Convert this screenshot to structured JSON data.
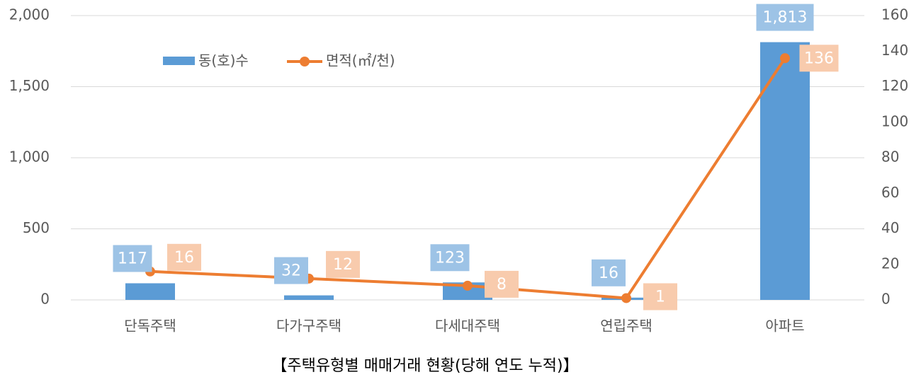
{
  "chart_data": {
    "type": "bar",
    "title": "【주택유형별 매매거래 현황(당해 연도 누적)】",
    "categories": [
      "단독주택",
      "다가구주택",
      "다세대주택",
      "연립주택",
      "아파트"
    ],
    "series": [
      {
        "name": "동(호)수",
        "type": "bar",
        "color": "#5b9bd5",
        "values": [
          117,
          32,
          123,
          16,
          1813
        ],
        "value_labels": [
          "117",
          "32",
          "123",
          "16",
          "1,813"
        ]
      },
      {
        "name": "면적(㎡/천)",
        "type": "line",
        "axis": "y2",
        "color": "#ed7d31",
        "values": [
          16,
          12,
          8,
          1,
          136
        ]
      }
    ],
    "ylim": [
      0,
      2000
    ],
    "yticks": [
      0,
      500,
      {
        "value": 1000,
        "label": "1,000"
      },
      {
        "value": 1500,
        "label": "1,500"
      },
      {
        "value": 2000,
        "label": "2,000"
      }
    ],
    "y2lim": [
      0,
      160
    ],
    "y2ticks": [
      0,
      20,
      40,
      60,
      80,
      100,
      120,
      140,
      160
    ],
    "grid": true,
    "legend": "top-left"
  }
}
